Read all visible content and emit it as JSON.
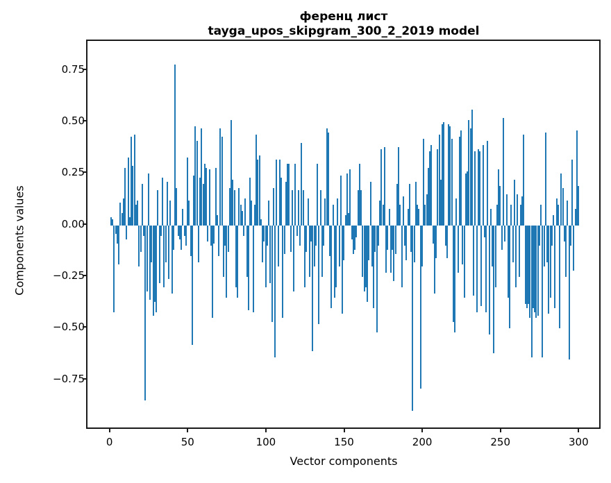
{
  "figure": {
    "title_line1": "ференц лист",
    "title_line2": "tayga_upos_skipgram_300_2_2019 model"
  },
  "axes": {
    "xlabel": "Vector components",
    "ylabel": "Components values",
    "ytick_labels": [
      "0.75",
      "0.50",
      "0.25",
      "0.00",
      "−0.25",
      "−0.50",
      "−0.75"
    ],
    "ytick_values": [
      0.75,
      0.5,
      0.25,
      0.0,
      -0.25,
      -0.5,
      -0.75
    ],
    "xtick_labels": [
      "0",
      "50",
      "100",
      "150",
      "200",
      "250",
      "300"
    ],
    "xtick_values": [
      0,
      50,
      100,
      150,
      200,
      250,
      300
    ]
  },
  "chart_data": {
    "type": "bar",
    "title": "ференц лист\ntayga_upos_skipgram_300_2_2019 model",
    "xlabel": "Vector components",
    "ylabel": "Components values",
    "bar_color": "#1f77b4",
    "n_components": 300,
    "xlim": [
      -15,
      314
    ],
    "ylim": [
      -0.99,
      0.89
    ],
    "grid": false,
    "legend": null,
    "values": [
      0.04,
      0.03,
      -0.42,
      -0.04,
      -0.09,
      -0.19,
      0.11,
      0.06,
      0.13,
      0.28,
      -0.07,
      0.33,
      0.04,
      0.43,
      0.29,
      0.44,
      0.1,
      0.12,
      -0.2,
      -0.13,
      0.2,
      -0.05,
      -0.85,
      -0.32,
      0.25,
      -0.36,
      -0.18,
      -0.44,
      -0.37,
      -0.42,
      0.17,
      -0.28,
      -0.05,
      0.23,
      -0.3,
      -0.18,
      0.21,
      -0.26,
      0.12,
      -0.33,
      -0.12,
      0.78,
      0.18,
      -0.05,
      -0.07,
      -0.12,
      0.08,
      -0.05,
      -0.1,
      0.33,
      0.12,
      -0.15,
      -0.58,
      0.24,
      0.48,
      0.41,
      -0.18,
      0.23,
      0.47,
      0.2,
      0.3,
      0.28,
      -0.08,
      0.27,
      -0.1,
      -0.45,
      -0.09,
      0.28,
      0.05,
      -0.15,
      0.47,
      0.43,
      -0.25,
      -0.1,
      -0.35,
      -0.13,
      0.18,
      0.51,
      0.22,
      0.17,
      -0.3,
      -0.35,
      0.18,
      0.1,
      0.07,
      -0.05,
      0.13,
      -0.25,
      -0.41,
      0.23,
      0.12,
      -0.42,
      0.1,
      0.44,
      0.32,
      0.34,
      0.03,
      -0.18,
      -0.08,
      -0.3,
      -0.1,
      0.12,
      -0.28,
      -0.47,
      0.18,
      -0.64,
      0.32,
      -0.2,
      0.32,
      0.23,
      -0.45,
      -0.14,
      0.21,
      0.3,
      0.3,
      -0.13,
      0.17,
      -0.32,
      0.3,
      -0.05,
      0.17,
      -0.1,
      0.4,
      0.17,
      -0.3,
      -0.13,
      0.13,
      -0.25,
      -0.08,
      -0.61,
      -0.2,
      -0.1,
      0.3,
      -0.48,
      0.17,
      -0.25,
      -0.1,
      0.13,
      0.47,
      0.45,
      -0.15,
      -0.4,
      0.1,
      -0.35,
      -0.3,
      0.13,
      -0.2,
      0.24,
      -0.43,
      -0.17,
      0.05,
      0.25,
      0.06,
      0.27,
      -0.07,
      -0.14,
      -0.12,
      -0.06,
      0.17,
      0.3,
      0.17,
      -0.25,
      -0.32,
      -0.3,
      -0.37,
      -0.17,
      0.21,
      -0.2,
      -0.4,
      -0.13,
      -0.52,
      -0.1,
      0.12,
      0.37,
      0.1,
      0.38,
      -0.23,
      -0.12,
      0.08,
      -0.23,
      -0.12,
      -0.27,
      -0.14,
      0.2,
      0.38,
      0.1,
      -0.3,
      0.14,
      -0.1,
      -0.17,
      0.08,
      0.2,
      -0.13,
      -0.9,
      -0.18,
      0.21,
      0.1,
      0.08,
      -0.79,
      -0.2,
      0.42,
      0.1,
      0.15,
      0.28,
      0.36,
      0.39,
      -0.09,
      -0.33,
      -0.16,
      0.37,
      0.44,
      0.22,
      0.49,
      0.5,
      -0.1,
      -0.16,
      0.49,
      0.48,
      0.42,
      -0.47,
      -0.52,
      0.13,
      -0.23,
      0.43,
      0.46,
      -0.19,
      -0.35,
      0.25,
      0.26,
      0.51,
      0.47,
      0.56,
      -0.34,
      0.36,
      -0.42,
      0.37,
      0.36,
      -0.39,
      0.39,
      -0.06,
      -0.42,
      0.41,
      -0.53,
      0.08,
      -0.2,
      -0.62,
      -0.3,
      0.1,
      0.27,
      0.19,
      -0.12,
      0.52,
      -0.08,
      0.15,
      -0.35,
      -0.5,
      0.1,
      -0.18,
      0.22,
      -0.3,
      0.15,
      -0.25,
      0.1,
      0.14,
      0.44,
      -0.38,
      -0.4,
      -0.38,
      -0.45,
      -0.64,
      -0.4,
      -0.42,
      -0.45,
      -0.44,
      -0.1,
      0.1,
      -0.64,
      -0.2,
      0.45,
      -0.18,
      -0.43,
      -0.35,
      -0.1,
      0.05,
      -0.4,
      0.13,
      0.1,
      -0.5,
      0.25,
      0.18,
      -0.08,
      -0.25,
      0.12,
      -0.65,
      -0.1,
      0.32,
      -0.22,
      0.08,
      0.46,
      0.19
    ]
  }
}
